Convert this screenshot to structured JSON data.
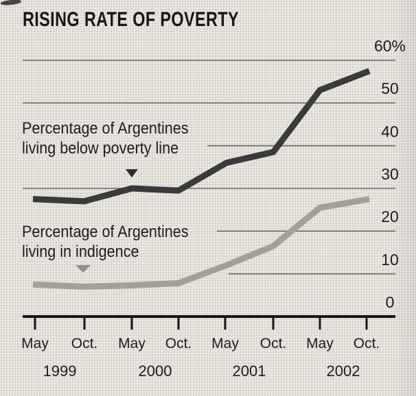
{
  "title": "RISING RATE OF POVERTY",
  "annotations": {
    "poverty_label_line1": "Percentage of Argentines",
    "poverty_label_line2": "living below poverty line",
    "indigence_label_line1": "Percentage of Argentines",
    "indigence_label_line2": "living in indigence"
  },
  "y_axis": {
    "labels": [
      "60%",
      "50",
      "40",
      "30",
      "20",
      "10",
      "0"
    ],
    "values": [
      60,
      50,
      40,
      30,
      20,
      10,
      0
    ]
  },
  "x_axis": {
    "months": [
      "May",
      "Oct.",
      "May",
      "Oct.",
      "May",
      "Oct.",
      "May",
      "Oct."
    ],
    "years": [
      "1999",
      "2000",
      "2001",
      "2002"
    ]
  },
  "chart_data": {
    "type": "line",
    "x": [
      "May 1999",
      "Oct 1999",
      "May 2000",
      "Oct 2000",
      "May 2001",
      "Oct 2001",
      "May 2002",
      "Oct 2002"
    ],
    "series": [
      {
        "name": "Percentage of Argentines living below poverty line",
        "values": [
          27.5,
          27,
          30,
          29.5,
          36,
          38.5,
          53,
          57.5
        ],
        "color": "#3a3a3a"
      },
      {
        "name": "Percentage of Argentines living in indigence",
        "values": [
          7.5,
          7,
          7.3,
          7.8,
          12,
          16.5,
          25.5,
          27.5
        ],
        "color": "#a3a098"
      }
    ],
    "title": "RISING RATE OF POVERTY",
    "xlabel": "",
    "ylabel": "percent",
    "ylim": [
      0,
      60
    ],
    "grid": true,
    "legend_position": "inline annotations with triangle pointers"
  },
  "colors": {
    "background": "#e9e6e0",
    "ink": "#1c1c1c",
    "grid": "#57524b",
    "axis": "#151515",
    "poverty_line": "#3a3a3a",
    "indigence_line": "#a3a098",
    "pointer_dark": "#2b2b2b",
    "pointer_gray": "#8f8d85"
  }
}
